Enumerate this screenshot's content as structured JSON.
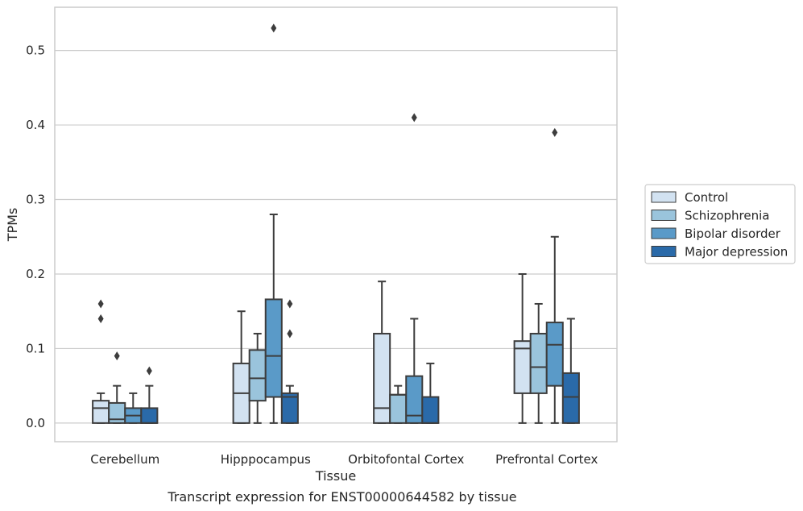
{
  "chart_data": {
    "type": "box",
    "title": "",
    "caption": "Transcript expression for ENST00000644582 by tissue",
    "xlabel": "Tissue",
    "ylabel": "TPMs",
    "ylim": [
      -0.025,
      0.558
    ],
    "yticks": [
      0.0,
      0.1,
      0.2,
      0.3,
      0.4,
      0.5
    ],
    "ytick_labels": [
      "0.0",
      "0.1",
      "0.2",
      "0.3",
      "0.4",
      "0.5"
    ],
    "grid": "horizontal",
    "legend_position": "right",
    "categories": [
      "Cerebellum",
      "Hipppocampus",
      "Orbitofontal Cortex",
      "Prefrontal Cortex"
    ],
    "series": [
      {
        "name": "Control",
        "color": "#d2e2f1",
        "boxes": [
          {
            "whisker_low": 0.0,
            "q1": 0.0,
            "median": 0.02,
            "q3": 0.03,
            "whisker_high": 0.04,
            "outliers": [
              0.14,
              0.16
            ]
          },
          {
            "whisker_low": 0.0,
            "q1": 0.0,
            "median": 0.04,
            "q3": 0.08,
            "whisker_high": 0.15,
            "outliers": []
          },
          {
            "whisker_low": 0.0,
            "q1": 0.0,
            "median": 0.02,
            "q3": 0.12,
            "whisker_high": 0.19,
            "outliers": []
          },
          {
            "whisker_low": 0.0,
            "q1": 0.04,
            "median": 0.1,
            "q3": 0.11,
            "whisker_high": 0.2,
            "outliers": []
          }
        ]
      },
      {
        "name": "Schizophrenia",
        "color": "#9ac4dc",
        "boxes": [
          {
            "whisker_low": 0.0,
            "q1": 0.0,
            "median": 0.005,
            "q3": 0.027,
            "whisker_high": 0.05,
            "outliers": [
              0.09
            ]
          },
          {
            "whisker_low": 0.0,
            "q1": 0.03,
            "median": 0.06,
            "q3": 0.098,
            "whisker_high": 0.12,
            "outliers": []
          },
          {
            "whisker_low": 0.0,
            "q1": 0.0,
            "median": 0.038,
            "q3": 0.038,
            "whisker_high": 0.05,
            "outliers": []
          },
          {
            "whisker_low": 0.0,
            "q1": 0.04,
            "median": 0.075,
            "q3": 0.12,
            "whisker_high": 0.16,
            "outliers": []
          }
        ]
      },
      {
        "name": "Bipolar disorder",
        "color": "#5a9ac8",
        "boxes": [
          {
            "whisker_low": 0.0,
            "q1": 0.0,
            "median": 0.01,
            "q3": 0.02,
            "whisker_high": 0.04,
            "outliers": []
          },
          {
            "whisker_low": 0.0,
            "q1": 0.035,
            "median": 0.09,
            "q3": 0.166,
            "whisker_high": 0.28,
            "outliers": [
              0.53
            ]
          },
          {
            "whisker_low": 0.0,
            "q1": 0.0,
            "median": 0.01,
            "q3": 0.063,
            "whisker_high": 0.14,
            "outliers": [
              0.41
            ]
          },
          {
            "whisker_low": 0.0,
            "q1": 0.05,
            "median": 0.105,
            "q3": 0.135,
            "whisker_high": 0.25,
            "outliers": [
              0.39
            ]
          }
        ]
      },
      {
        "name": "Major depression",
        "color": "#2a6aa9",
        "boxes": [
          {
            "whisker_low": 0.0,
            "q1": 0.0,
            "median": 0.0,
            "q3": 0.02,
            "whisker_high": 0.05,
            "outliers": [
              0.07
            ]
          },
          {
            "whisker_low": 0.0,
            "q1": 0.0,
            "median": 0.035,
            "q3": 0.04,
            "whisker_high": 0.05,
            "outliers": [
              0.12,
              0.16
            ]
          },
          {
            "whisker_low": 0.0,
            "q1": 0.0,
            "median": 0.0,
            "q3": 0.035,
            "whisker_high": 0.08,
            "outliers": []
          },
          {
            "whisker_low": 0.0,
            "q1": 0.0,
            "median": 0.035,
            "q3": 0.067,
            "whisker_high": 0.14,
            "outliers": []
          }
        ]
      }
    ]
  }
}
